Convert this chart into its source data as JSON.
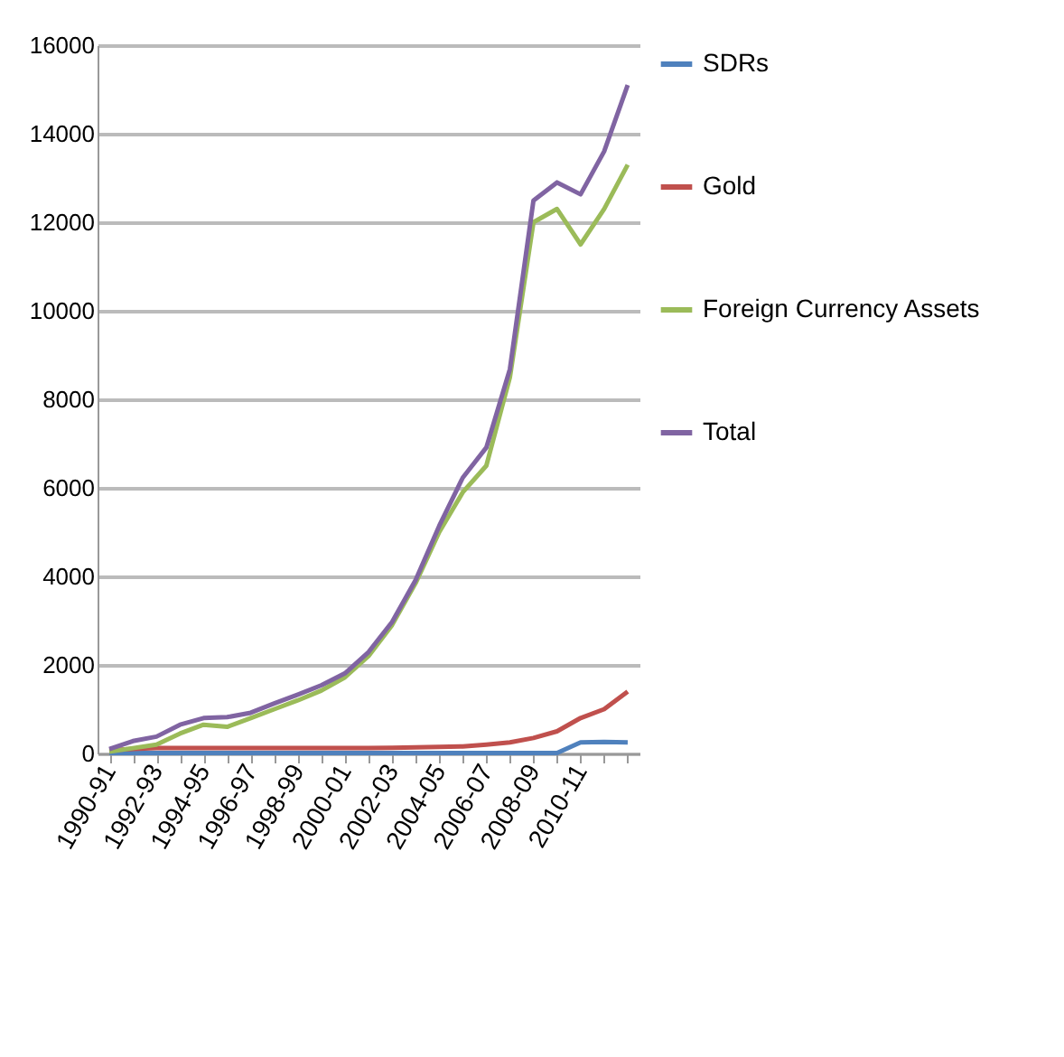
{
  "chart_data": {
    "type": "line",
    "categories": [
      "1990-91",
      null,
      "1992-93",
      null,
      "1994-95",
      null,
      "1996-97",
      null,
      "1998-99",
      null,
      "2000-01",
      null,
      "2002-03",
      null,
      "2004-05",
      null,
      "2006-07",
      null,
      "2008-09",
      null,
      "2010-11",
      null,
      null
    ],
    "series": [
      {
        "name": "SDRs",
        "color": "#4f81bd",
        "values": [
          10,
          10,
          10,
          10,
          10,
          10,
          10,
          10,
          10,
          10,
          10,
          10,
          10,
          10,
          10,
          10,
          10,
          10,
          10,
          10,
          250,
          260,
          250
        ]
      },
      {
        "name": "Gold",
        "color": "#c0504d",
        "values": [
          70,
          100,
          120,
          120,
          120,
          120,
          120,
          120,
          120,
          120,
          120,
          120,
          130,
          140,
          150,
          160,
          200,
          250,
          350,
          500,
          800,
          1000,
          1400
        ]
      },
      {
        "name": "Foreign Currency Assets",
        "color": "#9bbb59",
        "values": [
          40,
          120,
          200,
          450,
          650,
          600,
          800,
          1000,
          1200,
          1420,
          1720,
          2200,
          2900,
          3850,
          5000,
          5900,
          6500,
          8500,
          12000,
          12300,
          11500,
          12300,
          13300
        ]
      },
      {
        "name": "Total",
        "color": "#8064a2",
        "values": [
          100,
          280,
          380,
          650,
          800,
          820,
          920,
          1130,
          1330,
          1540,
          1810,
          2290,
          2970,
          3920,
          5140,
          6230,
          6910,
          8680,
          12490,
          12900,
          12630,
          13600,
          15100
        ]
      }
    ],
    "ylim": [
      0,
      16000
    ],
    "yticks": [
      0,
      2000,
      4000,
      6000,
      8000,
      10000,
      12000,
      14000,
      16000
    ],
    "grid": "y",
    "legend": "right",
    "marker": "none"
  }
}
